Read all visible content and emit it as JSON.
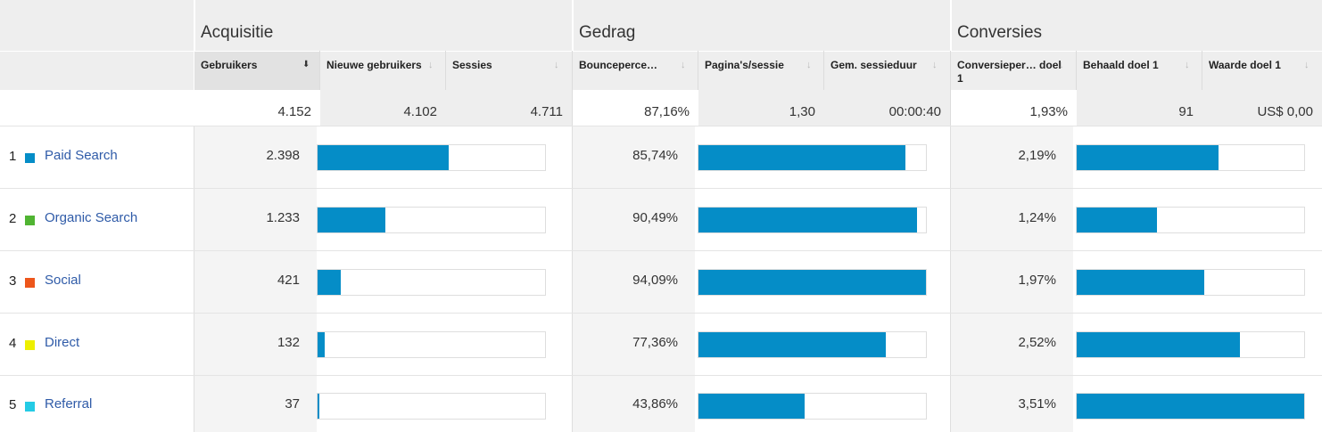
{
  "groups": [
    {
      "title": "Acquisitie"
    },
    {
      "title": "Gedrag"
    },
    {
      "title": "Conversies"
    }
  ],
  "columns": [
    {
      "label": "Gebruikers",
      "sorted": true
    },
    {
      "label": "Nieuwe gebruikers",
      "sorted": false
    },
    {
      "label": "Sessies",
      "sorted": false
    },
    {
      "label": "Bounceperce…",
      "sorted": false
    },
    {
      "label": "Pagina's/sessie",
      "sorted": false
    },
    {
      "label": "Gem. sessieduur",
      "sorted": false
    },
    {
      "label": "Conversieper… doel 1",
      "sorted": false
    },
    {
      "label": "Behaald doel 1",
      "sorted": false
    },
    {
      "label": "Waarde doel 1",
      "sorted": false
    }
  ],
  "totals": [
    "4.152",
    "4.102",
    "4.711",
    "87,16%",
    "1,30",
    "00:00:40",
    "1,93%",
    "91",
    "US$ 0,00"
  ],
  "rows": [
    {
      "num": "1",
      "channel": "Paid Search",
      "color": "#058dc7",
      "users": "2.398",
      "users_share": 0.578,
      "bounce": "85,74%",
      "bounce_share": 0.911,
      "conv": "2,19%",
      "conv_share": 0.624
    },
    {
      "num": "2",
      "channel": "Organic Search",
      "color": "#50b432",
      "users": "1.233",
      "users_share": 0.297,
      "bounce": "90,49%",
      "bounce_share": 0.962,
      "conv": "1,24%",
      "conv_share": 0.353
    },
    {
      "num": "3",
      "channel": "Social",
      "color": "#ed561b",
      "users": "421",
      "users_share": 0.101,
      "bounce": "94,09%",
      "bounce_share": 1.0,
      "conv": "1,97%",
      "conv_share": 0.561
    },
    {
      "num": "4",
      "channel": "Direct",
      "color": "#edef00",
      "users": "132",
      "users_share": 0.032,
      "bounce": "77,36%",
      "bounce_share": 0.822,
      "conv": "2,52%",
      "conv_share": 0.718
    },
    {
      "num": "5",
      "channel": "Referral",
      "color": "#24cbe5",
      "users": "37",
      "users_share": 0.009,
      "bounce": "43,86%",
      "bounce_share": 0.466,
      "conv": "3,51%",
      "conv_share": 1.0
    }
  ],
  "colors": {
    "bar": "#058dc7",
    "link": "#2f5ba8"
  }
}
